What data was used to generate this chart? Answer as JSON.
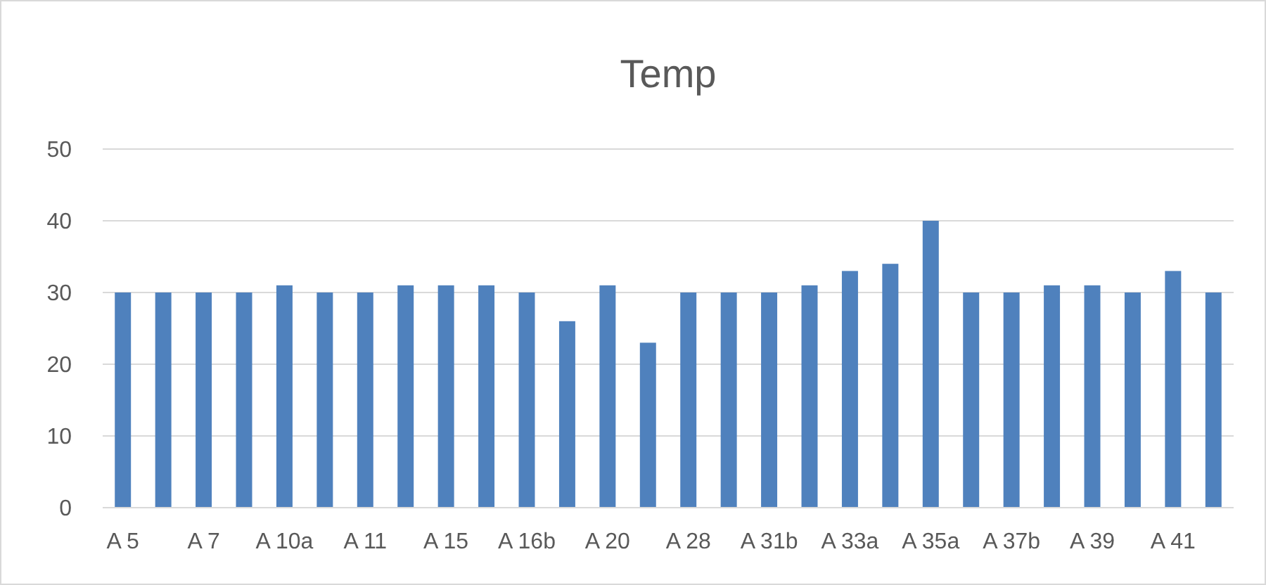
{
  "chart_data": {
    "type": "bar",
    "title": "Temp",
    "categories": [
      "A 5",
      null,
      "A 7",
      null,
      "A 10a",
      null,
      "A 11",
      null,
      "A 15",
      null,
      "A 16b",
      null,
      "A 20",
      null,
      "A 28",
      null,
      "A 31b",
      null,
      "A 33a",
      null,
      "A 35a",
      null,
      "A 37b",
      null,
      "A 39",
      null,
      "A 41",
      null
    ],
    "values": [
      30,
      30,
      30,
      30,
      31,
      30,
      30,
      31,
      31,
      31,
      30,
      26,
      31,
      23,
      30,
      30,
      30,
      31,
      33,
      34,
      40,
      30,
      30,
      31,
      31,
      30,
      33,
      30
    ],
    "color": "#4f81bd",
    "ylim": [
      0,
      50
    ],
    "yticks": [
      0,
      10,
      20,
      30,
      40,
      50
    ],
    "grid": "y"
  }
}
